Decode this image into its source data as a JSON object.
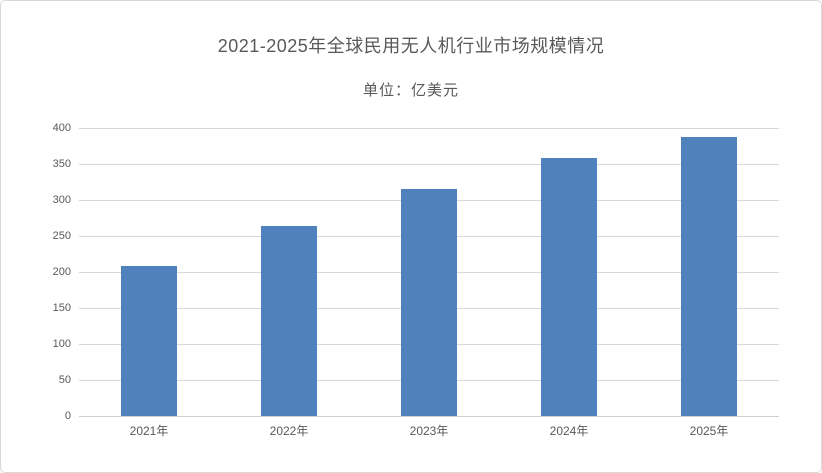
{
  "chart_data": {
    "type": "bar",
    "title": "2021-2025年全球民用无人机行业市场规模情况",
    "unit_label": "单位：亿美元",
    "categories": [
      "2021年",
      "2022年",
      "2023年",
      "2024年",
      "2025年"
    ],
    "values": [
      209,
      264,
      315,
      358,
      387
    ],
    "xlabel": "",
    "ylabel": "",
    "ylim": [
      0,
      400
    ],
    "ytick_step": 50,
    "y_ticks": [
      0,
      50,
      100,
      150,
      200,
      250,
      300,
      350,
      400
    ],
    "grid": true,
    "legend_position": "none",
    "colors": {
      "bar": "#4F81BD",
      "gridline": "#D9D9D9",
      "axis_line": "#CFCFCF",
      "text": "#595959",
      "background": "#FFFFFF",
      "border": "#D9D9D9"
    }
  }
}
